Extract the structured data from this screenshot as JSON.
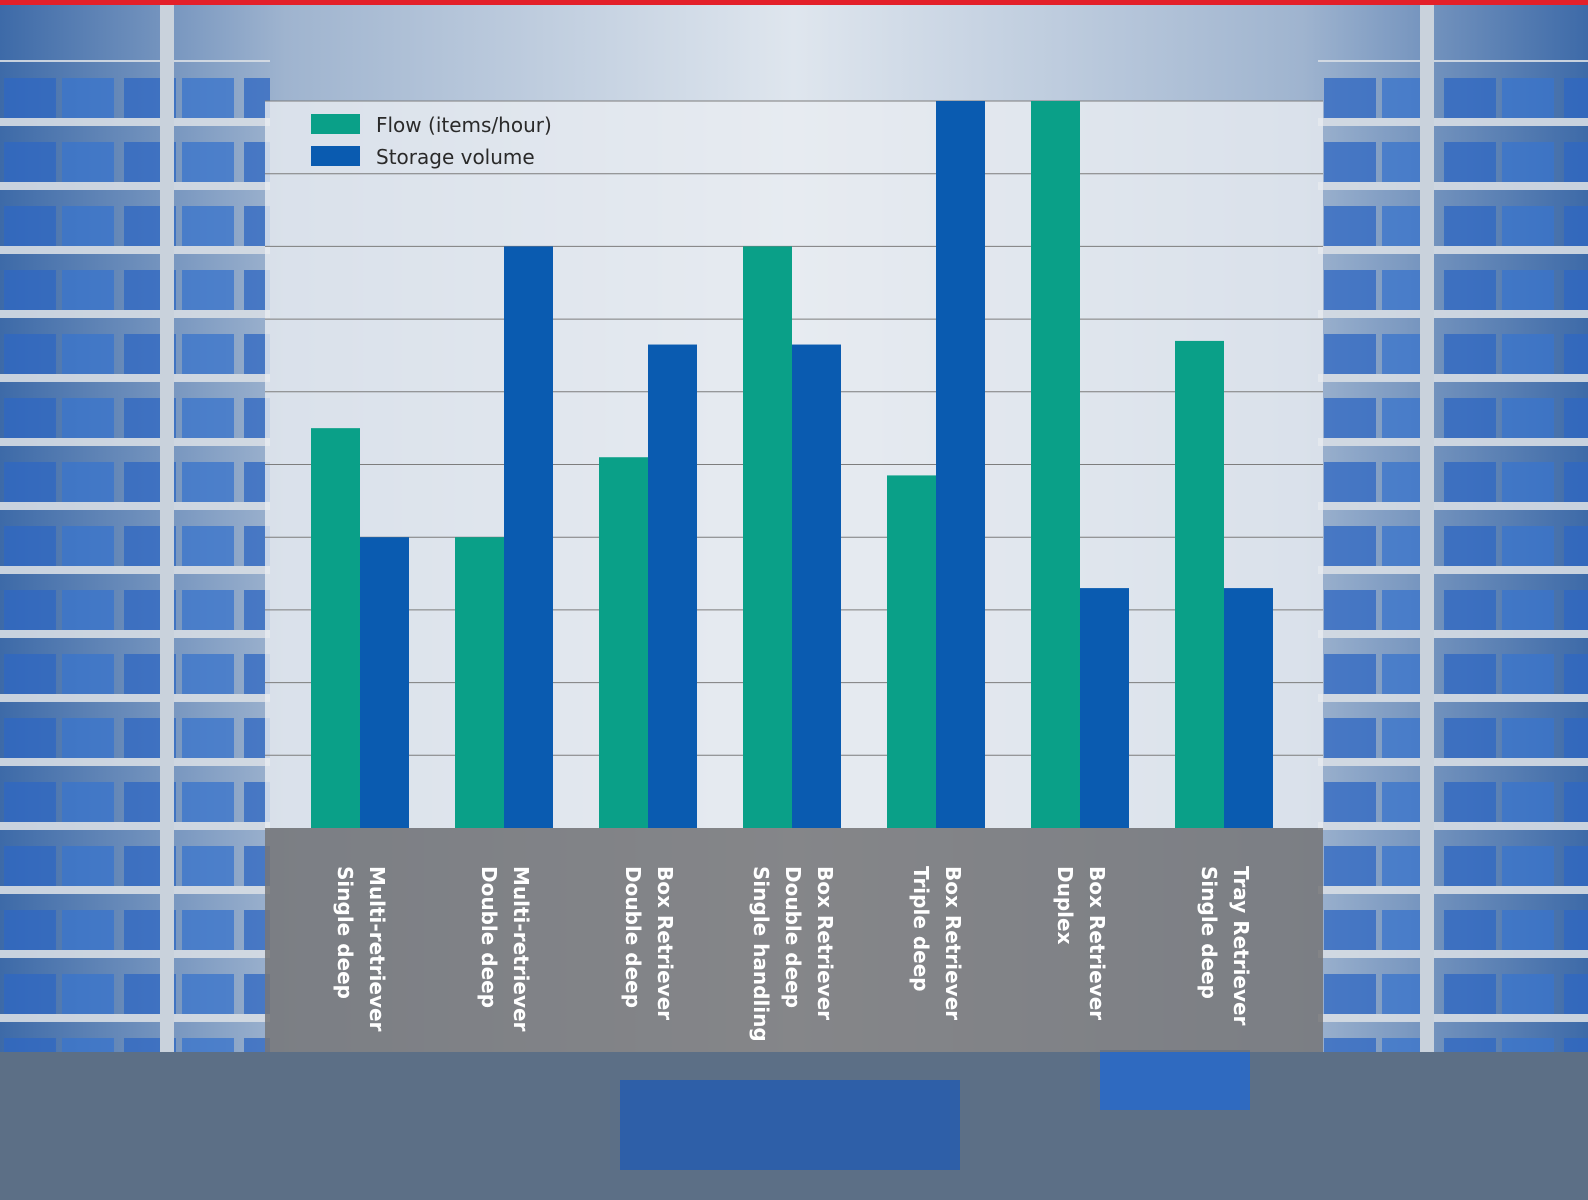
{
  "colors": {
    "flow": "#0aa088",
    "storage": "#0a5bb0",
    "grid": "#7d7d7d",
    "accent_stripe": "#e3202a"
  },
  "chart_data": {
    "type": "bar",
    "categories": [
      [
        "Multi-retriever",
        "Single deep"
      ],
      [
        "Multi-retriever",
        "Double deep"
      ],
      [
        "Box Retriever",
        "Double deep"
      ],
      [
        "Box Retriever",
        "Double deep",
        "Single handling"
      ],
      [
        "Box Retriever",
        "Triple deep"
      ],
      [
        "Box Retriever",
        "Duplex"
      ],
      [
        "Tray Retriever",
        "Single deep"
      ]
    ],
    "series": [
      {
        "name": "Flow (items/hour)",
        "color": "#0aa088",
        "values": [
          5.5,
          4.0,
          5.1,
          8.0,
          4.85,
          10.0,
          6.7
        ]
      },
      {
        "name": "Storage volume",
        "color": "#0a5bb0",
        "values": [
          4.0,
          8.0,
          6.65,
          6.65,
          10.0,
          3.3,
          3.3
        ]
      }
    ],
    "ylim": [
      0,
      10
    ],
    "grid": true,
    "legend_position": "top-left",
    "axis_labels_shown": false
  }
}
